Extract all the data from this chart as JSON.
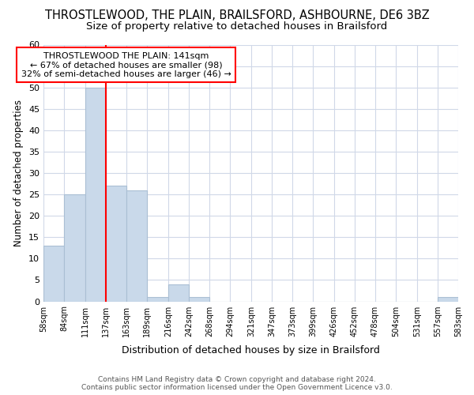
{
  "title": "THROSTLEWOOD, THE PLAIN, BRAILSFORD, ASHBOURNE, DE6 3BZ",
  "subtitle": "Size of property relative to detached houses in Brailsford",
  "xlabel": "Distribution of detached houses by size in Brailsford",
  "ylabel": "Number of detached properties",
  "bar_edges": [
    58,
    84,
    111,
    137,
    163,
    189,
    216,
    242,
    268,
    294,
    321,
    347,
    373,
    399,
    426,
    452,
    478,
    504,
    531,
    557,
    583
  ],
  "bar_heights": [
    13,
    25,
    50,
    27,
    26,
    1,
    4,
    1,
    0,
    0,
    0,
    0,
    0,
    0,
    0,
    0,
    0,
    0,
    0,
    1
  ],
  "bar_color": "#c9d9ea",
  "bar_edgecolor": "#aabfd4",
  "vline_x": 137,
  "vline_color": "red",
  "annotation_text": "THROSTLEWOOD THE PLAIN: 141sqm\n← 67% of detached houses are smaller (98)\n32% of semi-detached houses are larger (46) →",
  "annotation_box_color": "white",
  "annotation_box_edgecolor": "red",
  "ylim": [
    0,
    60
  ],
  "yticks": [
    0,
    5,
    10,
    15,
    20,
    25,
    30,
    35,
    40,
    45,
    50,
    55,
    60
  ],
  "tick_labels": [
    "58sqm",
    "84sqm",
    "111sqm",
    "137sqm",
    "163sqm",
    "189sqm",
    "216sqm",
    "242sqm",
    "268sqm",
    "294sqm",
    "321sqm",
    "347sqm",
    "373sqm",
    "399sqm",
    "426sqm",
    "452sqm",
    "478sqm",
    "504sqm",
    "531sqm",
    "557sqm",
    "583sqm"
  ],
  "footer": "Contains HM Land Registry data © Crown copyright and database right 2024.\nContains public sector information licensed under the Open Government Licence v3.0.",
  "bg_color": "#ffffff",
  "grid_color": "#d0d8e8",
  "title_fontsize": 10.5,
  "subtitle_fontsize": 9.5,
  "title_fontweight": "normal"
}
